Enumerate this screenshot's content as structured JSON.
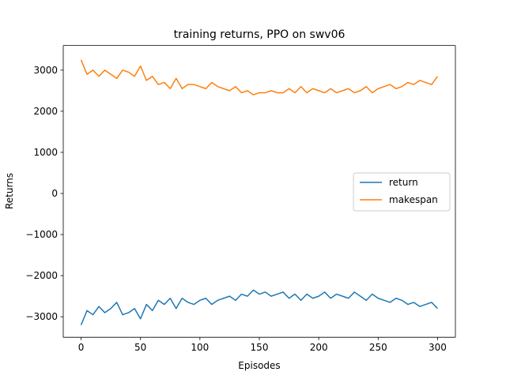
{
  "chart_data": {
    "type": "line",
    "title": "training returns, PPO on swv06",
    "xlabel": "Episodes",
    "ylabel": "Returns",
    "xlim": [
      -15,
      315
    ],
    "ylim": [
      -3500,
      3600
    ],
    "xticks": [
      0,
      50,
      100,
      150,
      200,
      250,
      300
    ],
    "yticks": [
      -3000,
      -2000,
      -1000,
      0,
      1000,
      2000,
      3000
    ],
    "xtick_labels": [
      "0",
      "50",
      "100",
      "150",
      "200",
      "250",
      "300"
    ],
    "ytick_labels": [
      "−3000",
      "−2000",
      "−1000",
      "0",
      "1000",
      "2000",
      "3000"
    ],
    "grid": false,
    "legend_position": "center-right",
    "series": [
      {
        "name": "return",
        "color": "#1f77b4",
        "x": [
          0,
          5,
          10,
          15,
          20,
          25,
          30,
          35,
          40,
          45,
          50,
          55,
          60,
          65,
          70,
          75,
          80,
          85,
          90,
          95,
          100,
          105,
          110,
          115,
          120,
          125,
          130,
          135,
          140,
          145,
          150,
          155,
          160,
          165,
          170,
          175,
          180,
          185,
          190,
          195,
          200,
          205,
          210,
          215,
          220,
          225,
          230,
          235,
          240,
          245,
          250,
          255,
          260,
          265,
          270,
          275,
          280,
          285,
          290,
          295,
          300
        ],
        "values": [
          -3200,
          -2850,
          -2950,
          -2750,
          -2900,
          -2800,
          -2650,
          -2950,
          -2900,
          -2800,
          -3050,
          -2700,
          -2850,
          -2600,
          -2700,
          -2550,
          -2800,
          -2550,
          -2650,
          -2700,
          -2600,
          -2550,
          -2700,
          -2600,
          -2550,
          -2500,
          -2600,
          -2450,
          -2500,
          -2350,
          -2450,
          -2400,
          -2500,
          -2450,
          -2400,
          -2550,
          -2450,
          -2600,
          -2450,
          -2550,
          -2500,
          -2400,
          -2550,
          -2450,
          -2500,
          -2550,
          -2400,
          -2500,
          -2600,
          -2450,
          -2550,
          -2600,
          -2650,
          -2550,
          -2600,
          -2700,
          -2650,
          -2750,
          -2700,
          -2650,
          -2800
        ]
      },
      {
        "name": "makespan",
        "color": "#ff7f0e",
        "x": [
          0,
          5,
          10,
          15,
          20,
          25,
          30,
          35,
          40,
          45,
          50,
          55,
          60,
          65,
          70,
          75,
          80,
          85,
          90,
          95,
          100,
          105,
          110,
          115,
          120,
          125,
          130,
          135,
          140,
          145,
          150,
          155,
          160,
          165,
          170,
          175,
          180,
          185,
          190,
          195,
          200,
          205,
          210,
          215,
          220,
          225,
          230,
          235,
          240,
          245,
          250,
          255,
          260,
          265,
          270,
          275,
          280,
          285,
          290,
          295,
          300
        ],
        "values": [
          3250,
          2900,
          3000,
          2850,
          3000,
          2900,
          2800,
          3000,
          2950,
          2850,
          3100,
          2750,
          2850,
          2650,
          2700,
          2550,
          2800,
          2550,
          2650,
          2650,
          2600,
          2550,
          2700,
          2600,
          2550,
          2500,
          2600,
          2450,
          2500,
          2400,
          2450,
          2450,
          2500,
          2450,
          2450,
          2550,
          2450,
          2600,
          2450,
          2550,
          2500,
          2450,
          2550,
          2450,
          2500,
          2550,
          2450,
          2500,
          2600,
          2450,
          2550,
          2600,
          2650,
          2550,
          2600,
          2700,
          2650,
          2750,
          2700,
          2650,
          2850
        ]
      }
    ]
  }
}
